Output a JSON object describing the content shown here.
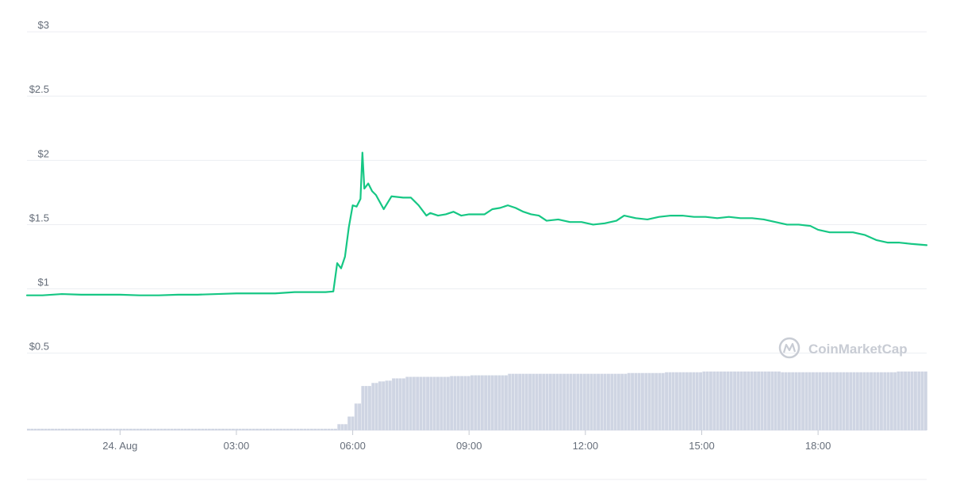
{
  "watermark": "CoinMarketCap",
  "colors": {
    "price_line": "#16c784",
    "volume_bars": "#cfd5e3",
    "grid": "#eceef2",
    "axis_text": "#666e7a",
    "watermark": "#c8ccd4"
  },
  "chart_data": {
    "type": "line",
    "title": "",
    "xlabel": "",
    "ylabel": "",
    "y_ticks": [
      "$0.5",
      "$1",
      "$1.5",
      "$2",
      "$2.5",
      "$3"
    ],
    "y_tick_values": [
      0.5,
      1,
      1.5,
      2,
      2.5,
      3
    ],
    "ylim": [
      0.35,
      3.05
    ],
    "x_ticks": [
      "24. Aug",
      "03:00",
      "06:00",
      "09:00",
      "12:00",
      "15:00",
      "18:00"
    ],
    "x_tick_hours": [
      0,
      3,
      6,
      9,
      12,
      15,
      18
    ],
    "x_range_hours": [
      -2.4,
      20.8
    ],
    "grid": true,
    "legend": "none",
    "series": [
      {
        "values_x_hours": [
          -2.4,
          -2.0,
          -1.5,
          -1.0,
          -0.5,
          0.0,
          0.5,
          1.0,
          1.5,
          2.0,
          2.5,
          3.0,
          3.5,
          4.0,
          4.5,
          5.0,
          5.3,
          5.5,
          5.6,
          5.7,
          5.8,
          5.9,
          6.0,
          6.1,
          6.2,
          6.25,
          6.3,
          6.4,
          6.5,
          6.6,
          6.8,
          7.0,
          7.3,
          7.5,
          7.7,
          7.9,
          8.0,
          8.2,
          8.4,
          8.6,
          8.8,
          9.0,
          9.2,
          9.4,
          9.6,
          9.8,
          10.0,
          10.2,
          10.4,
          10.6,
          10.8,
          11.0,
          11.3,
          11.6,
          11.9,
          12.2,
          12.5,
          12.8,
          13.0,
          13.3,
          13.6,
          13.9,
          14.2,
          14.5,
          14.8,
          15.1,
          15.4,
          15.7,
          16.0,
          16.3,
          16.6,
          16.9,
          17.2,
          17.5,
          17.8,
          18.0,
          18.3,
          18.6,
          18.9,
          19.2,
          19.5,
          19.8,
          20.1,
          20.4,
          20.8
        ],
        "values_y_usd": [
          0.95,
          0.95,
          0.96,
          0.955,
          0.955,
          0.955,
          0.95,
          0.95,
          0.955,
          0.955,
          0.96,
          0.965,
          0.965,
          0.965,
          0.975,
          0.975,
          0.975,
          0.98,
          1.2,
          1.16,
          1.25,
          1.48,
          1.65,
          1.64,
          1.7,
          2.06,
          1.78,
          1.82,
          1.76,
          1.73,
          1.62,
          1.72,
          1.71,
          1.71,
          1.65,
          1.57,
          1.59,
          1.57,
          1.58,
          1.6,
          1.57,
          1.58,
          1.58,
          1.58,
          1.62,
          1.63,
          1.65,
          1.63,
          1.6,
          1.58,
          1.57,
          1.53,
          1.54,
          1.52,
          1.52,
          1.5,
          1.51,
          1.53,
          1.57,
          1.55,
          1.54,
          1.56,
          1.57,
          1.57,
          1.56,
          1.56,
          1.55,
          1.56,
          1.55,
          1.55,
          1.54,
          1.52,
          1.5,
          1.5,
          1.49,
          1.46,
          1.44,
          1.44,
          1.44,
          1.42,
          1.38,
          1.36,
          1.36,
          1.35,
          1.34
        ]
      }
    ],
    "volume": {
      "x_hours": [
        -2.4,
        5.4,
        5.6,
        5.8,
        6.0,
        6.2,
        6.4,
        6.6,
        6.8,
        7.0,
        7.3,
        7.6,
        8.0,
        8.5,
        9.0,
        10.0,
        11.0,
        12.0,
        13.0,
        14.0,
        15.0,
        16.0,
        17.0,
        18.0,
        19.0,
        20.0,
        20.8
      ],
      "relative_height": [
        0.02,
        0.02,
        0.08,
        0.18,
        0.35,
        0.58,
        0.62,
        0.64,
        0.65,
        0.68,
        0.7,
        0.7,
        0.7,
        0.71,
        0.72,
        0.74,
        0.74,
        0.74,
        0.75,
        0.76,
        0.77,
        0.77,
        0.76,
        0.76,
        0.76,
        0.77,
        0.77
      ]
    }
  }
}
